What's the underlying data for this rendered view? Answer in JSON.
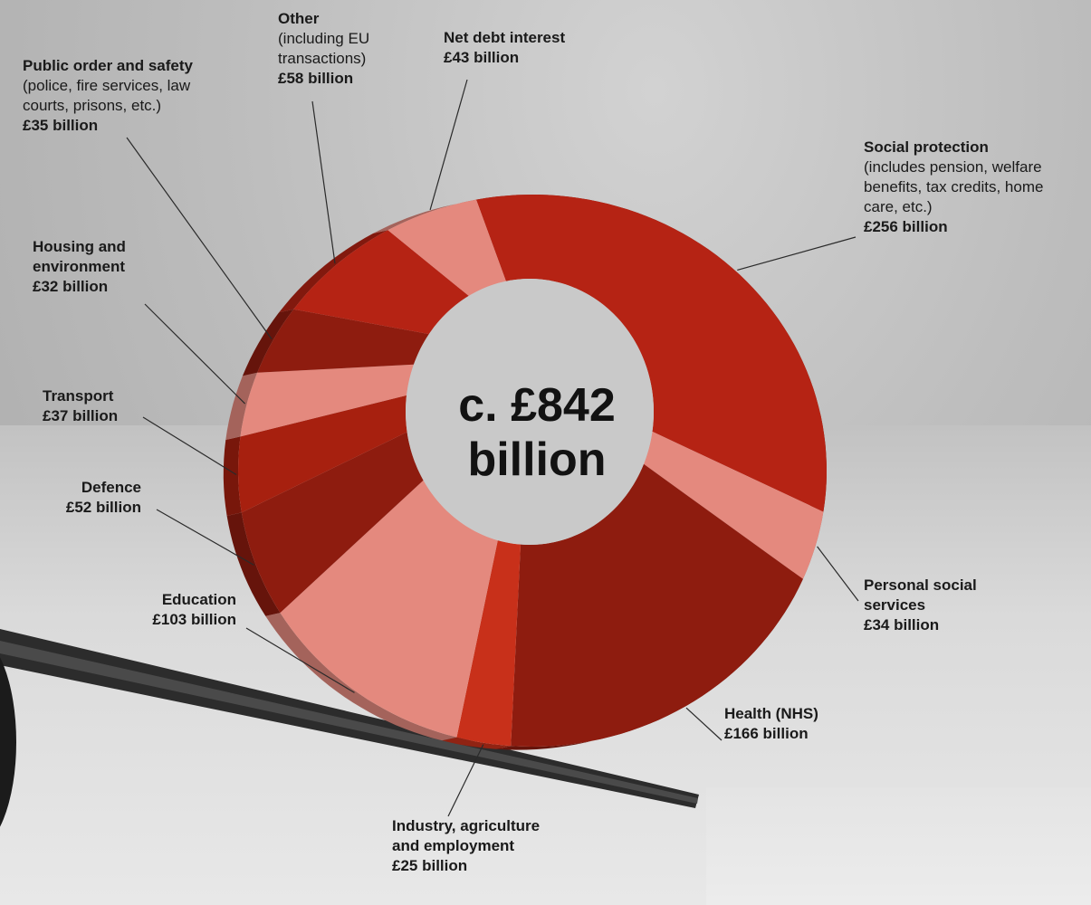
{
  "colors": {
    "dark_red": "#b52314",
    "deep_red": "#8e1c0f",
    "salmon": "#e4897e",
    "bright_red": "#c8301a",
    "mid_red": "#a7200f"
  },
  "chart_data": {
    "type": "pie",
    "center_label": "c. £842 billion",
    "unit": "billion",
    "slices": [
      {
        "name": "Social protection",
        "note": "(includes pension, welfare benefits, tax credits, home care, etc.)",
        "value": 256,
        "value_label": "£256 billion",
        "color": "#b52314"
      },
      {
        "name": "Personal social services",
        "note": "",
        "value": 34,
        "value_label": "£34 billion",
        "color": "#e4897e"
      },
      {
        "name": "Health (NHS)",
        "note": "",
        "value": 166,
        "value_label": "£166 billion",
        "color": "#8e1c0f"
      },
      {
        "name": "Industry, agriculture and employment",
        "note": "",
        "value": 25,
        "value_label": "£25 billion",
        "color": "#c8301a"
      },
      {
        "name": "Education",
        "note": "",
        "value": 103,
        "value_label": "£103 billion",
        "color": "#e4897e"
      },
      {
        "name": "Defence",
        "note": "",
        "value": 52,
        "value_label": "£52 billion",
        "color": "#8e1c0f"
      },
      {
        "name": "Transport",
        "note": "",
        "value": 37,
        "value_label": "£37 billion",
        "color": "#a7200f"
      },
      {
        "name": "Housing and environment",
        "note": "",
        "value": 32,
        "value_label": "£32 billion",
        "color": "#e4897e"
      },
      {
        "name": "Public order and safety",
        "note": "(police, fire services, law courts, prisons, etc.)",
        "value": 35,
        "value_label": "£35 billion",
        "color": "#8e1c0f"
      },
      {
        "name": "Other",
        "note": "(including EU transactions)",
        "value": 58,
        "value_label": "£58 billion",
        "color": "#b52314"
      },
      {
        "name": "Net debt interest",
        "note": "",
        "value": 43,
        "value_label": "£43 billion",
        "color": "#e4897e"
      }
    ]
  }
}
